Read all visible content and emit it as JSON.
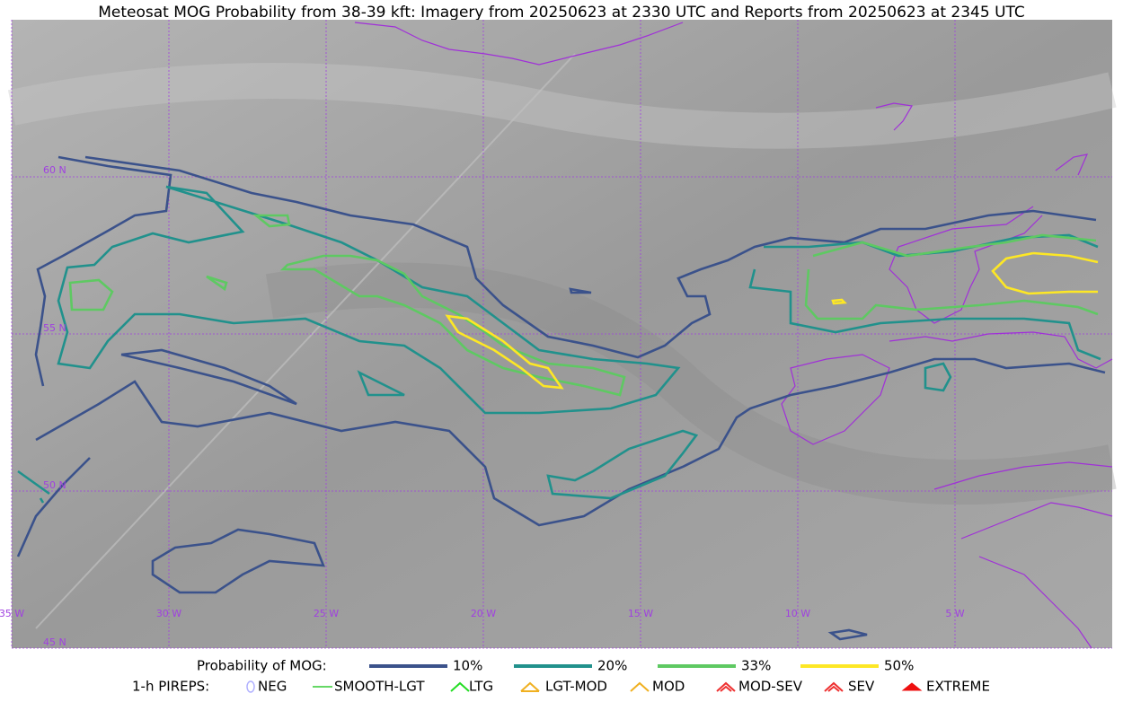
{
  "title": "Meteosat MOG Probability from 38-39 kft: Imagery from 20250623 at 2330 UTC and Reports from 20250623 at 2345 UTC",
  "grid_labels": {
    "latitude": [
      "60 N",
      "55 N",
      "50 N",
      "45 N"
    ],
    "longitude": [
      "35 W",
      "30 W",
      "25 W",
      "20 W",
      "15 W",
      "10 W",
      "5 W"
    ]
  },
  "legend": {
    "probability": {
      "label": "Probability of MOG:",
      "items": [
        {
          "label": "10%",
          "color": "#3b528b"
        },
        {
          "label": "20%",
          "color": "#21918c"
        },
        {
          "label": "33%",
          "color": "#5ec962"
        },
        {
          "label": "50%",
          "color": "#fde725"
        }
      ]
    },
    "pireps": {
      "label": "1-h PIREPS:",
      "items": [
        {
          "label": "NEG",
          "color": "#b0b0ff"
        },
        {
          "label": "SMOOTH-LGT",
          "color": "#33cc33"
        },
        {
          "label": "LTG",
          "color": "#22dd22"
        },
        {
          "label": "LGT-MOD",
          "color": "#f0b020"
        },
        {
          "label": "MOD",
          "color": "#f0b020"
        },
        {
          "label": "MOD-SEV",
          "color": "#ee3030"
        },
        {
          "label": "SEV",
          "color": "#ee3030"
        },
        {
          "label": "EXTREME",
          "color": "#ee1010"
        }
      ]
    }
  }
}
